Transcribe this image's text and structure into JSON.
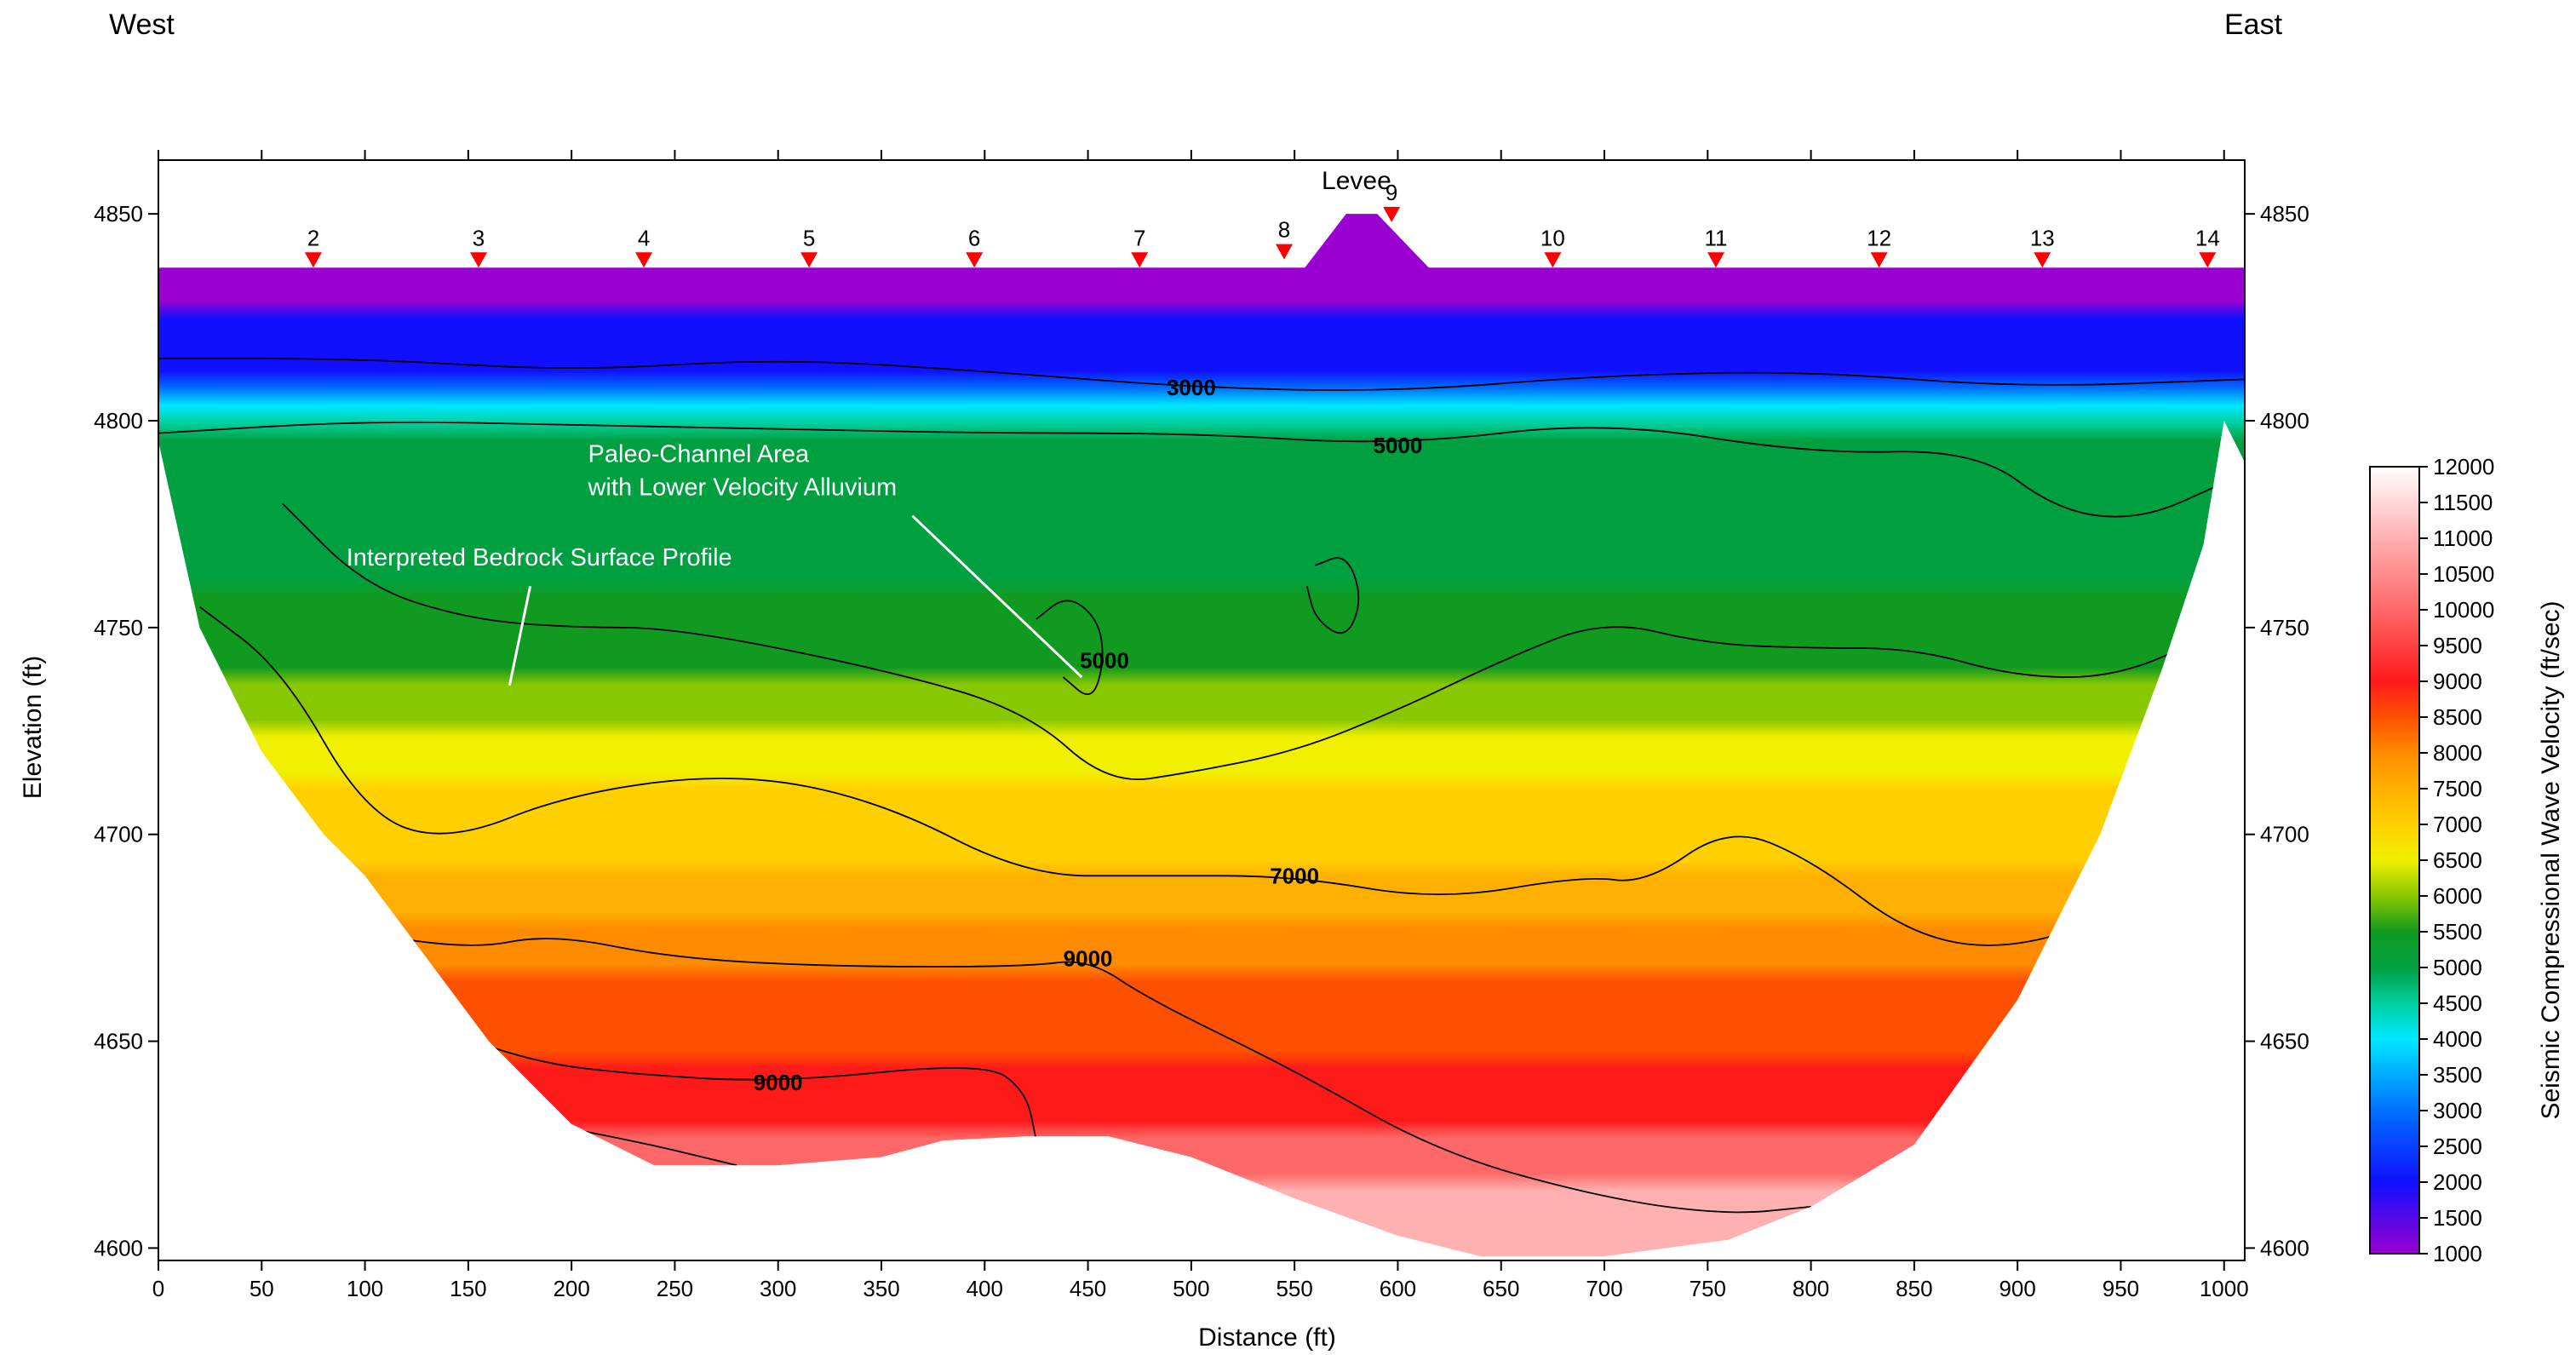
{
  "chart_data": {
    "type": "heatmap",
    "title": "",
    "corner_labels": {
      "left": "West",
      "right": "East"
    },
    "xlabel": "Distance (ft)",
    "ylabel": "Elevation (ft)",
    "colorbar_label": "Seismic Compressional Wave Velocity (ft/sec)",
    "xlim": [
      0,
      1010
    ],
    "ylim": [
      4597,
      4863
    ],
    "x_ticks": [
      0,
      50,
      100,
      150,
      200,
      250,
      300,
      350,
      400,
      450,
      500,
      550,
      600,
      650,
      700,
      750,
      800,
      850,
      900,
      950,
      1000
    ],
    "y_ticks": [
      4600,
      4650,
      4700,
      4750,
      4800,
      4850
    ],
    "colorbar_ticks": [
      1000,
      1500,
      2000,
      2500,
      3000,
      3500,
      4000,
      4500,
      5000,
      5500,
      6000,
      6500,
      7000,
      7500,
      8000,
      8500,
      9000,
      9500,
      10000,
      10500,
      11000,
      11500,
      12000
    ],
    "colorbar_range": [
      1000,
      12000
    ],
    "color_stops": [
      {
        "v": 1000,
        "c": "#9a00d0"
      },
      {
        "v": 2000,
        "c": "#1010ff"
      },
      {
        "v": 3000,
        "c": "#0070ff"
      },
      {
        "v": 4000,
        "c": "#00e8ff"
      },
      {
        "v": 4500,
        "c": "#00d0a0"
      },
      {
        "v": 5000,
        "c": "#00a040"
      },
      {
        "v": 5500,
        "c": "#109a20"
      },
      {
        "v": 6000,
        "c": "#88c800"
      },
      {
        "v": 6500,
        "c": "#f0f000"
      },
      {
        "v": 7000,
        "c": "#ffd000"
      },
      {
        "v": 7500,
        "c": "#ffb000"
      },
      {
        "v": 8000,
        "c": "#ff8c00"
      },
      {
        "v": 8500,
        "c": "#ff5000"
      },
      {
        "v": 9000,
        "c": "#ff1a1a"
      },
      {
        "v": 10000,
        "c": "#ff6868"
      },
      {
        "v": 11000,
        "c": "#ffb0b0"
      },
      {
        "v": 12000,
        "c": "#ffffff"
      }
    ],
    "geophones": [
      {
        "label": "2",
        "x": 75,
        "elev": 4837
      },
      {
        "label": "3",
        "x": 155,
        "elev": 4837
      },
      {
        "label": "4",
        "x": 235,
        "elev": 4837
      },
      {
        "label": "5",
        "x": 315,
        "elev": 4837
      },
      {
        "label": "6",
        "x": 395,
        "elev": 4837
      },
      {
        "label": "7",
        "x": 475,
        "elev": 4837
      },
      {
        "label": "8",
        "x": 545,
        "elev": 4839
      },
      {
        "label": "9",
        "x": 597,
        "elev": 4848
      },
      {
        "label": "10",
        "x": 675,
        "elev": 4837
      },
      {
        "label": "11",
        "x": 754,
        "elev": 4837
      },
      {
        "label": "12",
        "x": 833,
        "elev": 4837
      },
      {
        "label": "13",
        "x": 912,
        "elev": 4837
      },
      {
        "label": "14",
        "x": 992,
        "elev": 4837
      }
    ],
    "surface": [
      [
        0,
        4837
      ],
      [
        555,
        4837
      ],
      [
        575,
        4850
      ],
      [
        590,
        4850
      ],
      [
        615,
        4837
      ],
      [
        1010,
        4837
      ]
    ],
    "bottom_boundary": [
      [
        0,
        4795
      ],
      [
        20,
        4750
      ],
      [
        50,
        4720
      ],
      [
        80,
        4700
      ],
      [
        100,
        4690
      ],
      [
        130,
        4670
      ],
      [
        160,
        4650
      ],
      [
        200,
        4630
      ],
      [
        240,
        4620
      ],
      [
        300,
        4620
      ],
      [
        350,
        4622
      ],
      [
        380,
        4626
      ],
      [
        420,
        4627
      ],
      [
        460,
        4627
      ],
      [
        500,
        4622
      ],
      [
        550,
        4612
      ],
      [
        600,
        4603
      ],
      [
        640,
        4598
      ],
      [
        700,
        4598
      ],
      [
        760,
        4602
      ],
      [
        800,
        4610
      ],
      [
        850,
        4625
      ],
      [
        900,
        4660
      ],
      [
        940,
        4700
      ],
      [
        970,
        4740
      ],
      [
        990,
        4770
      ],
      [
        1000,
        4800
      ]
    ],
    "contours": [
      {
        "value": 3000,
        "label": "3000",
        "pts": [
          [
            0,
            4815
          ],
          [
            100,
            4815
          ],
          [
            200,
            4812
          ],
          [
            300,
            4815
          ],
          [
            400,
            4812
          ],
          [
            500,
            4808
          ],
          [
            600,
            4807
          ],
          [
            700,
            4811
          ],
          [
            800,
            4812
          ],
          [
            900,
            4808
          ],
          [
            1010,
            4810
          ]
        ]
      },
      {
        "value": 5000,
        "label": "5000",
        "pts": [
          [
            0,
            4797
          ],
          [
            100,
            4800
          ],
          [
            200,
            4799
          ],
          [
            300,
            4798
          ],
          [
            400,
            4797
          ],
          [
            500,
            4797
          ],
          [
            600,
            4794
          ],
          [
            700,
            4800
          ],
          [
            800,
            4792
          ],
          [
            880,
            4793
          ],
          [
            920,
            4778
          ],
          [
            960,
            4776
          ],
          [
            1000,
            4785
          ]
        ]
      },
      {
        "value": 5000,
        "label": "",
        "pts": [
          [
            60,
            4780
          ],
          [
            100,
            4760
          ],
          [
            150,
            4752
          ],
          [
            200,
            4750
          ],
          [
            250,
            4750
          ],
          [
            350,
            4740
          ],
          [
            420,
            4730
          ],
          [
            460,
            4712
          ],
          [
            500,
            4715
          ],
          [
            550,
            4720
          ],
          [
            600,
            4730
          ],
          [
            650,
            4742
          ],
          [
            700,
            4752
          ],
          [
            750,
            4746
          ],
          [
            800,
            4745
          ],
          [
            850,
            4745
          ],
          [
            900,
            4738
          ],
          [
            950,
            4738
          ],
          [
            1000,
            4750
          ]
        ]
      },
      {
        "value": 5000,
        "label": "5000",
        "pts": [
          [
            425,
            4752
          ],
          [
            440,
            4758
          ],
          [
            455,
            4752
          ],
          [
            458,
            4742
          ],
          [
            452,
            4732
          ],
          [
            438,
            4738
          ]
        ]
      },
      {
        "value": 5000,
        "label": "",
        "pts": [
          [
            560,
            4765
          ],
          [
            575,
            4768
          ],
          [
            583,
            4757
          ],
          [
            575,
            4747
          ],
          [
            560,
            4752
          ],
          [
            556,
            4760
          ]
        ]
      },
      {
        "value": 7000,
        "label": "7000",
        "pts": [
          [
            20,
            4755
          ],
          [
            60,
            4740
          ],
          [
            100,
            4705
          ],
          [
            140,
            4698
          ],
          [
            200,
            4710
          ],
          [
            280,
            4715
          ],
          [
            350,
            4708
          ],
          [
            420,
            4690
          ],
          [
            480,
            4690
          ],
          [
            550,
            4690
          ],
          [
            620,
            4684
          ],
          [
            690,
            4690
          ],
          [
            720,
            4688
          ],
          [
            760,
            4702
          ],
          [
            800,
            4694
          ],
          [
            850,
            4675
          ],
          [
            900,
            4672
          ],
          [
            960,
            4683
          ]
        ]
      },
      {
        "value": 9000,
        "label": "9000",
        "pts": [
          [
            80,
            4678
          ],
          [
            150,
            4672
          ],
          [
            190,
            4676
          ],
          [
            250,
            4670
          ],
          [
            330,
            4668
          ],
          [
            420,
            4668
          ],
          [
            450,
            4670
          ],
          [
            480,
            4660
          ],
          [
            550,
            4643
          ],
          [
            620,
            4623
          ],
          [
            700,
            4612
          ],
          [
            760,
            4608
          ],
          [
            800,
            4610
          ]
        ]
      },
      {
        "value": 9000,
        "label": "9000",
        "pts": [
          [
            120,
            4656
          ],
          [
            180,
            4645
          ],
          [
            230,
            4642
          ],
          [
            300,
            4640
          ],
          [
            400,
            4645
          ],
          [
            420,
            4638
          ],
          [
            425,
            4626
          ]
        ]
      },
      {
        "value": 11000,
        "label": "",
        "pts": [
          [
            155,
            4633
          ],
          [
            230,
            4626
          ],
          [
            280,
            4620
          ]
        ]
      }
    ],
    "annotations": [
      {
        "text": "Levee",
        "x": 580,
        "elev": 4856
      },
      {
        "text": "Paleo-Channel Area",
        "x": 208,
        "elev": 4790
      },
      {
        "text": "with Lower Velocity Alluvium",
        "x": 208,
        "elev": 4782
      },
      {
        "text": "Interpreted Bedrock Surface Profile",
        "x": 91,
        "elev": 4765
      }
    ],
    "grid": false,
    "legend": "colorbar-right"
  }
}
